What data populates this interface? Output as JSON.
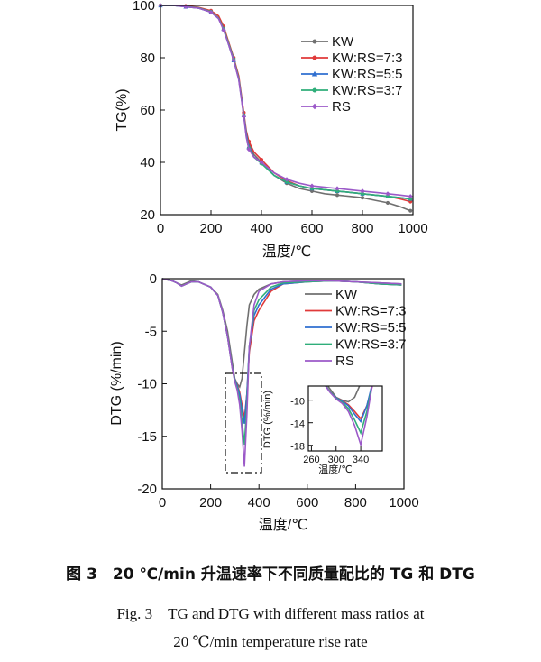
{
  "caption": {
    "chinese": "图 3　20 ℃/min 升温速率下不同质量配比的 TG 和 DTG",
    "english_line1": "Fig. 3　TG and DTG with different mass ratios at",
    "english_line2": "20 ℃/min temperature rise rate"
  },
  "chart_data": [
    {
      "type": "line",
      "panel": "TG",
      "xlabel": "温度/℃",
      "ylabel": "TG(%)",
      "xlim": [
        0,
        1000
      ],
      "ylim": [
        20,
        100
      ],
      "xticks": [
        0,
        200,
        400,
        600,
        800,
        1000
      ],
      "yticks": [
        20,
        40,
        60,
        80,
        100
      ],
      "legend_position": "top-right",
      "series": [
        {
          "name": "KW",
          "color": "#707070",
          "marker": "circle",
          "x": [
            0,
            50,
            100,
            150,
            200,
            230,
            250,
            270,
            290,
            310,
            330,
            340,
            350,
            370,
            400,
            450,
            500,
            550,
            600,
            650,
            700,
            750,
            800,
            850,
            900,
            950,
            990
          ],
          "y": [
            100,
            100,
            99.5,
            99,
            97.5,
            95,
            91,
            85,
            79,
            72,
            58,
            51,
            47,
            43,
            40,
            35,
            32,
            30,
            29,
            28,
            27.5,
            27,
            26.5,
            25.5,
            24.5,
            23,
            21.5
          ]
        },
        {
          "name": "KW:RS=7:3",
          "color": "#e03a3a",
          "marker": "circle",
          "x": [
            0,
            50,
            100,
            150,
            200,
            230,
            250,
            270,
            290,
            310,
            330,
            340,
            350,
            370,
            400,
            450,
            500,
            550,
            600,
            650,
            700,
            750,
            800,
            850,
            900,
            950,
            990
          ],
          "y": [
            100,
            100,
            99.8,
            99.3,
            98,
            96,
            92,
            86,
            80,
            73,
            59,
            52,
            48,
            44,
            41,
            36,
            33,
            31,
            30,
            29.5,
            29,
            28.5,
            28,
            27.5,
            27,
            26,
            25
          ]
        },
        {
          "name": "KW:RS=5:5",
          "color": "#2f6fd0",
          "marker": "triangle",
          "x": [
            0,
            50,
            100,
            150,
            200,
            230,
            250,
            270,
            290,
            310,
            330,
            340,
            350,
            370,
            400,
            450,
            500,
            550,
            600,
            650,
            700,
            750,
            800,
            850,
            900,
            950,
            990
          ],
          "y": [
            100,
            100,
            99.5,
            99,
            97.5,
            95,
            91,
            85,
            79,
            72,
            58,
            51,
            46,
            42,
            40,
            35,
            32.5,
            31,
            30,
            29.5,
            29,
            28.5,
            28,
            27.5,
            27,
            26.5,
            26
          ]
        },
        {
          "name": "KW:RS=3:7",
          "color": "#2fae7a",
          "marker": "circle",
          "x": [
            0,
            50,
            100,
            150,
            200,
            230,
            250,
            270,
            290,
            310,
            330,
            340,
            350,
            370,
            400,
            450,
            500,
            550,
            600,
            650,
            700,
            750,
            800,
            850,
            900,
            950,
            990
          ],
          "y": [
            100,
            100,
            99.6,
            99.1,
            97.6,
            95.2,
            91,
            85.5,
            79.5,
            72,
            58,
            50,
            45.5,
            42,
            39.5,
            35,
            32.5,
            31,
            30,
            29.5,
            29,
            28.5,
            28,
            27.5,
            27,
            26.5,
            26
          ]
        },
        {
          "name": "RS",
          "color": "#9b59c8",
          "marker": "diamond",
          "x": [
            0,
            50,
            100,
            150,
            200,
            230,
            250,
            270,
            290,
            310,
            330,
            340,
            350,
            370,
            400,
            450,
            500,
            550,
            600,
            650,
            700,
            750,
            800,
            850,
            900,
            950,
            990
          ],
          "y": [
            100,
            100,
            99.5,
            99,
            97.4,
            95,
            90.5,
            85,
            79,
            71.5,
            57.5,
            49.5,
            45,
            42,
            40,
            36,
            33.5,
            32,
            31,
            30.5,
            30,
            29.5,
            29,
            28.5,
            28,
            27.5,
            27
          ]
        }
      ]
    },
    {
      "type": "line",
      "panel": "DTG",
      "xlabel": "温度/℃",
      "ylabel": "DTG (%/min)",
      "xlim": [
        0,
        1000
      ],
      "ylim": [
        -20,
        0
      ],
      "xticks": [
        0,
        200,
        400,
        600,
        800,
        1000
      ],
      "yticks": [
        0,
        -5,
        -10,
        -15,
        -20
      ],
      "legend_position": "top-right",
      "series": [
        {
          "name": "KW",
          "color": "#707070",
          "x": [
            0,
            20,
            40,
            60,
            80,
            100,
            120,
            150,
            200,
            230,
            250,
            270,
            290,
            300,
            310,
            320,
            330,
            340,
            350,
            360,
            380,
            400,
            450,
            500,
            600,
            700,
            800,
            900,
            990
          ],
          "y": [
            0,
            -0.1,
            -0.2,
            -0.4,
            -0.6,
            -0.4,
            -0.2,
            -0.3,
            -0.8,
            -1.5,
            -3,
            -5,
            -8,
            -9.5,
            -10,
            -10.3,
            -9.5,
            -7,
            -4.5,
            -2.5,
            -1.5,
            -1,
            -0.5,
            -0.3,
            -0.2,
            -0.2,
            -0.3,
            -0.4,
            -0.5
          ]
        },
        {
          "name": "KW:RS=7:3",
          "color": "#e03a3a",
          "x": [
            0,
            20,
            40,
            60,
            80,
            100,
            120,
            150,
            200,
            230,
            250,
            270,
            290,
            300,
            310,
            320,
            330,
            340,
            350,
            360,
            380,
            400,
            450,
            500,
            600,
            700,
            800,
            900,
            990
          ],
          "y": [
            0,
            -0.1,
            -0.2,
            -0.4,
            -0.7,
            -0.5,
            -0.3,
            -0.3,
            -0.8,
            -1.6,
            -3.2,
            -5.5,
            -8.5,
            -9.6,
            -10.1,
            -10.8,
            -12,
            -13.3,
            -11,
            -7,
            -4,
            -3,
            -1.2,
            -0.5,
            -0.3,
            -0.2,
            -0.3,
            -0.5,
            -0.6
          ]
        },
        {
          "name": "KW:RS=5:5",
          "color": "#2f6fd0",
          "x": [
            0,
            20,
            40,
            60,
            80,
            100,
            120,
            150,
            200,
            230,
            250,
            270,
            290,
            300,
            310,
            320,
            330,
            340,
            350,
            360,
            380,
            400,
            450,
            500,
            600,
            700,
            800,
            900,
            990
          ],
          "y": [
            0,
            -0.1,
            -0.2,
            -0.4,
            -0.7,
            -0.5,
            -0.3,
            -0.3,
            -0.8,
            -1.6,
            -3.2,
            -5.5,
            -8.5,
            -9.6,
            -10.2,
            -11,
            -12.5,
            -13.8,
            -11,
            -6.5,
            -3.5,
            -2.5,
            -1,
            -0.5,
            -0.3,
            -0.2,
            -0.3,
            -0.5,
            -0.6
          ]
        },
        {
          "name": "KW:RS=3:7",
          "color": "#2fae7a",
          "x": [
            0,
            20,
            40,
            60,
            80,
            100,
            120,
            150,
            200,
            230,
            250,
            270,
            290,
            300,
            310,
            320,
            330,
            340,
            350,
            360,
            380,
            400,
            450,
            500,
            600,
            700,
            800,
            900,
            990
          ],
          "y": [
            0,
            -0.1,
            -0.2,
            -0.4,
            -0.7,
            -0.5,
            -0.3,
            -0.3,
            -0.8,
            -1.6,
            -3.2,
            -5.5,
            -8.5,
            -9.7,
            -10.4,
            -11.5,
            -13.5,
            -15.8,
            -12,
            -6.5,
            -3,
            -2,
            -0.8,
            -0.4,
            -0.3,
            -0.2,
            -0.3,
            -0.5,
            -0.6
          ]
        },
        {
          "name": "RS",
          "color": "#9b59c8",
          "x": [
            0,
            20,
            40,
            60,
            80,
            100,
            120,
            150,
            200,
            230,
            250,
            270,
            290,
            300,
            310,
            320,
            330,
            340,
            350,
            360,
            380,
            400,
            450,
            500,
            600,
            700,
            800,
            900,
            990
          ],
          "y": [
            0,
            -0.1,
            -0.2,
            -0.4,
            -0.7,
            -0.5,
            -0.3,
            -0.3,
            -0.8,
            -1.6,
            -3.2,
            -5.5,
            -8.6,
            -9.8,
            -10.6,
            -12,
            -14.5,
            -17.9,
            -13,
            -6.5,
            -2.5,
            -1.2,
            -0.5,
            -0.3,
            -0.2,
            -0.2,
            -0.3,
            -0.4,
            -0.5
          ]
        }
      ]
    },
    {
      "type": "line",
      "panel": "DTG-inset",
      "xlabel": "温度/℃",
      "ylabel": "DTG (%/min)",
      "xlim": [
        255,
        375
      ],
      "ylim": [
        -19,
        -7.5
      ],
      "xticks": [
        260,
        300,
        340
      ],
      "yticks": [
        -10,
        -14,
        -18
      ],
      "series_ref": "same series as DTG panel"
    }
  ]
}
